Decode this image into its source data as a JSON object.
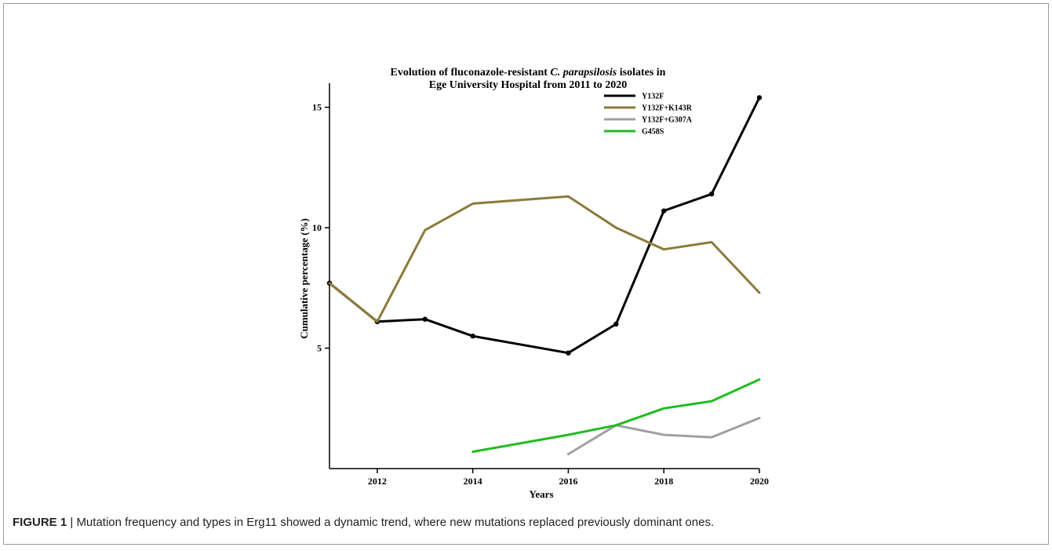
{
  "caption": {
    "label": "FIGURE 1",
    "separator": "|",
    "text": "Mutation frequency and types in Erg11 showed a dynamic trend, where new mutations replaced previously dominant ones."
  },
  "chart_data": {
    "type": "line",
    "title_parts": [
      {
        "text": "Evolution of fluconazole-resistant ",
        "italic": false
      },
      {
        "text": "C. parapsilosis",
        "italic": true
      },
      {
        "text": " isolates in",
        "italic": false
      }
    ],
    "title_line2": "Ege University Hospital from 2011 to 2020",
    "xlabel": "Years",
    "ylabel": "Cumulative percentage (%)",
    "xlim": [
      2011,
      2020
    ],
    "ylim": [
      0,
      16
    ],
    "xticks": [
      2012,
      2014,
      2016,
      2018,
      2020
    ],
    "yticks": [
      5,
      10,
      15
    ],
    "grid": false,
    "legend_position": "top-right",
    "series": [
      {
        "name": "Y132F",
        "color": "#000000",
        "markers": true,
        "x": [
          2011,
          2012,
          2013,
          2014,
          2016,
          2017,
          2018,
          2019,
          2020
        ],
        "y": [
          7.7,
          6.1,
          6.2,
          5.5,
          4.8,
          6.0,
          10.7,
          11.4,
          15.4
        ]
      },
      {
        "name": "Y132F+K143R",
        "color": "#8b7a3a",
        "markers": false,
        "x": [
          2011,
          2012,
          2013,
          2014,
          2016,
          2017,
          2018,
          2019,
          2020
        ],
        "y": [
          7.7,
          6.1,
          9.9,
          11.0,
          11.3,
          10.0,
          9.1,
          9.4,
          7.3
        ]
      },
      {
        "name": "Y132F+G307A",
        "color": "#a0a0a0",
        "markers": false,
        "x": [
          2016,
          2017,
          2018,
          2019,
          2020
        ],
        "y": [
          0.6,
          1.8,
          1.4,
          1.3,
          2.1
        ]
      },
      {
        "name": "G458S",
        "color": "#22bb22",
        "markers": false,
        "x": [
          2014,
          2016,
          2017,
          2018,
          2019,
          2020
        ],
        "y": [
          0.7,
          1.4,
          1.8,
          2.5,
          2.8,
          3.7
        ]
      }
    ]
  }
}
